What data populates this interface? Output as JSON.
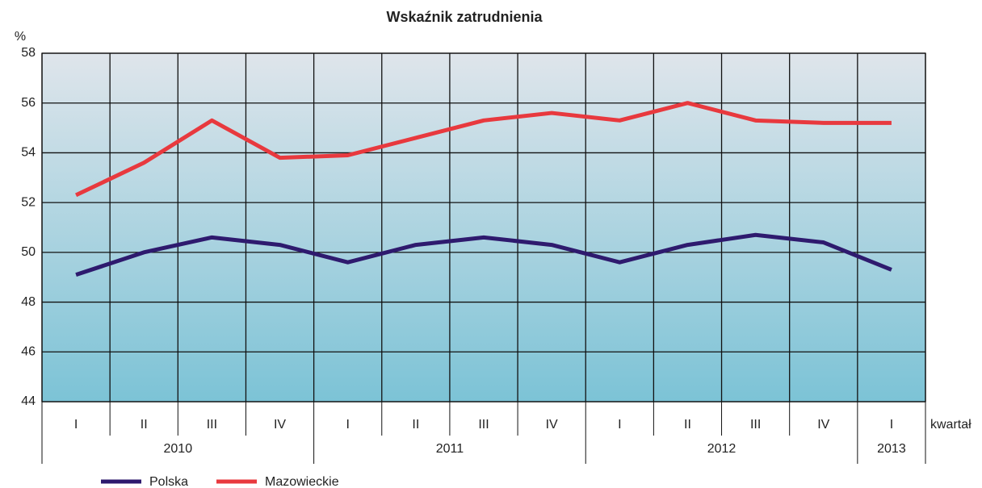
{
  "chart_data": {
    "type": "line",
    "title": "Wskaźnik zatrudnienia",
    "ylabel": "%",
    "xlabel": "kwartał",
    "categories": [
      "I",
      "II",
      "III",
      "IV",
      "I",
      "II",
      "III",
      "IV",
      "I",
      "II",
      "III",
      "IV",
      "I"
    ],
    "year_groups": [
      {
        "label": "2010",
        "count": 4
      },
      {
        "label": "2011",
        "count": 4
      },
      {
        "label": "2012",
        "count": 4
      },
      {
        "label": "2013",
        "count": 1
      }
    ],
    "series": [
      {
        "name": "Polska",
        "color": "#2e1a6e",
        "values": [
          49.1,
          50.0,
          50.6,
          50.3,
          49.6,
          50.3,
          50.6,
          50.3,
          49.6,
          50.3,
          50.7,
          50.4,
          49.3
        ]
      },
      {
        "name": "Mazowieckie",
        "color": "#e8393e",
        "values": [
          52.3,
          53.6,
          55.3,
          53.8,
          53.9,
          54.6,
          55.3,
          55.6,
          55.3,
          56.0,
          55.3,
          55.2,
          55.2
        ]
      }
    ],
    "ylim": [
      44,
      58
    ],
    "yticks": [
      44,
      46,
      48,
      50,
      52,
      54,
      56,
      58
    ],
    "grid": true,
    "legend": "bottom"
  }
}
